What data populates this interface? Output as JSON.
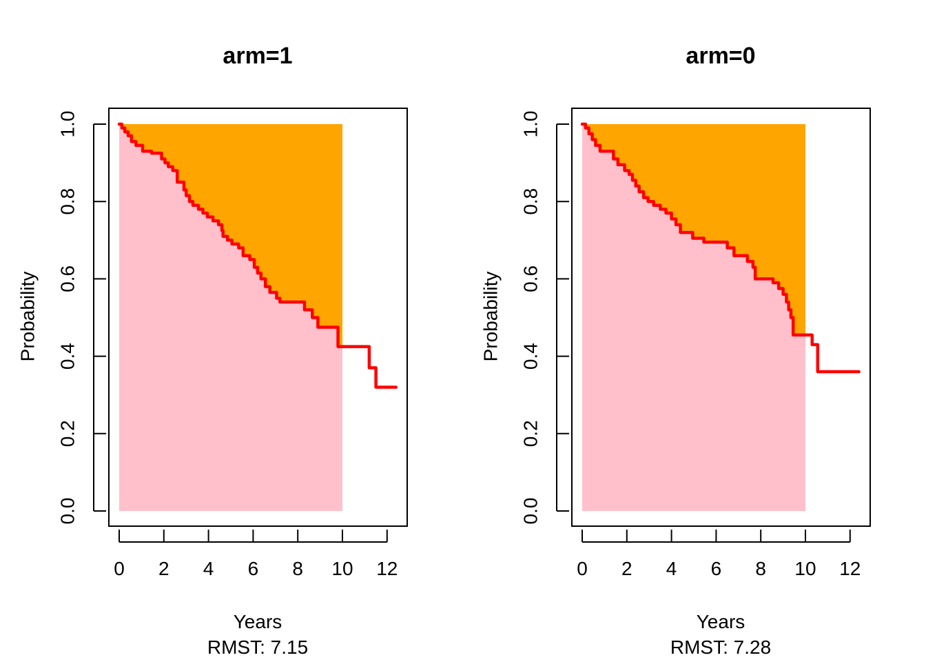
{
  "chart_data": [
    {
      "type": "line",
      "title": "arm=1",
      "xlabel": "Years",
      "ylabel": "Probability",
      "subtitle": "RMST: 7.15",
      "xlim": [
        0,
        12.4
      ],
      "ylim": [
        0,
        1
      ],
      "xticks": [
        "0",
        "2",
        "4",
        "6",
        "8",
        "10",
        "12"
      ],
      "yticks": [
        "0.0",
        "0.2",
        "0.4",
        "0.6",
        "0.8",
        "1.0"
      ],
      "tau": 10,
      "colors": {
        "curve": "#ff0000",
        "area_under": "#ffc0cb",
        "area_above": "#ffa500"
      },
      "series": [
        {
          "x": [
            0,
            0.12,
            0.25,
            0.4,
            0.55,
            0.75,
            1.05,
            1.45,
            1.9,
            2.05,
            2.2,
            2.4,
            2.6,
            2.9,
            3.0,
            3.15,
            3.3,
            3.55,
            3.75,
            3.95,
            4.2,
            4.45,
            4.6,
            4.65,
            4.85,
            5.05,
            5.35,
            5.55,
            5.85,
            6.05,
            6.2,
            6.35,
            6.55,
            6.75,
            7.05,
            7.2,
            7.4,
            8.3,
            8.65,
            8.9,
            9.8,
            10.2,
            11.2,
            11.5,
            12.4
          ],
          "values": [
            1.0,
            0.99,
            0.98,
            0.97,
            0.955,
            0.945,
            0.93,
            0.925,
            0.91,
            0.9,
            0.89,
            0.88,
            0.85,
            0.83,
            0.815,
            0.8,
            0.79,
            0.78,
            0.77,
            0.76,
            0.75,
            0.74,
            0.725,
            0.71,
            0.7,
            0.69,
            0.68,
            0.66,
            0.65,
            0.63,
            0.615,
            0.6,
            0.58,
            0.565,
            0.55,
            0.54,
            0.54,
            0.52,
            0.5,
            0.475,
            0.425,
            0.425,
            0.37,
            0.32,
            0.32
          ]
        }
      ]
    },
    {
      "type": "line",
      "title": "arm=0",
      "xlabel": "Years",
      "ylabel": "Probability",
      "subtitle": "RMST: 7.28",
      "xlim": [
        0,
        12.4
      ],
      "ylim": [
        0,
        1
      ],
      "xticks": [
        "0",
        "2",
        "4",
        "6",
        "8",
        "10",
        "12"
      ],
      "yticks": [
        "0.0",
        "0.2",
        "0.4",
        "0.6",
        "0.8",
        "1.0"
      ],
      "tau": 10,
      "colors": {
        "curve": "#ff0000",
        "area_under": "#ffc0cb",
        "area_above": "#ffa500"
      },
      "series": [
        {
          "x": [
            0,
            0.15,
            0.3,
            0.45,
            0.6,
            0.8,
            1.4,
            1.6,
            1.9,
            2.1,
            2.25,
            2.4,
            2.55,
            2.75,
            2.95,
            3.2,
            3.5,
            3.75,
            4.0,
            4.2,
            4.4,
            4.95,
            5.45,
            6.5,
            6.8,
            7.4,
            7.65,
            7.75,
            8.55,
            8.8,
            9.0,
            9.15,
            9.25,
            9.35,
            9.45,
            10.3,
            10.55,
            12.4
          ],
          "values": [
            1.0,
            0.99,
            0.975,
            0.96,
            0.945,
            0.93,
            0.91,
            0.895,
            0.88,
            0.87,
            0.855,
            0.84,
            0.825,
            0.81,
            0.8,
            0.79,
            0.78,
            0.77,
            0.755,
            0.74,
            0.72,
            0.705,
            0.695,
            0.68,
            0.66,
            0.645,
            0.63,
            0.6,
            0.59,
            0.575,
            0.56,
            0.54,
            0.52,
            0.5,
            0.455,
            0.43,
            0.36,
            0.36
          ]
        }
      ]
    }
  ]
}
